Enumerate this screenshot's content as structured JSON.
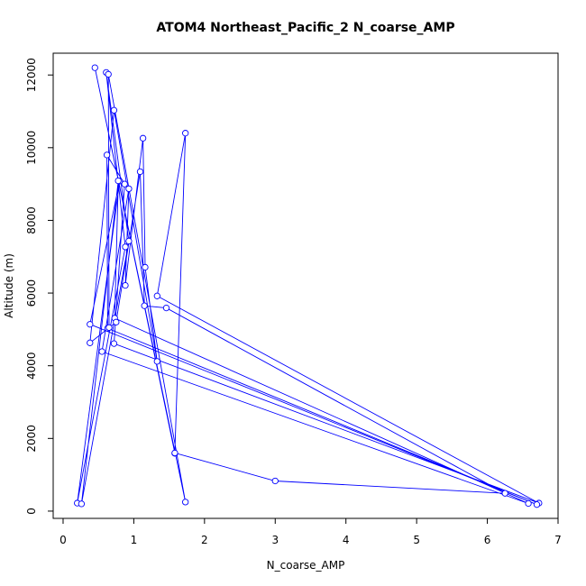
{
  "chart_data": {
    "type": "line",
    "title": "ATOM4 Northeast_Pacific_2 N_coarse_AMP",
    "xlabel": "N_coarse_AMP",
    "ylabel": "Altitude (m)",
    "xlim": [
      -0.14,
      7.0
    ],
    "ylim": [
      -200,
      12600
    ],
    "x_ticks": [
      0,
      1,
      2,
      3,
      4,
      5,
      6,
      7
    ],
    "y_ticks": [
      0,
      2000,
      4000,
      6000,
      8000,
      10000,
      12000
    ],
    "grid": false,
    "series": [
      {
        "color": "#0000ff",
        "marker": "open-circle",
        "points": [
          {
            "x": 1.58,
            "y": 1590
          },
          {
            "x": 1.73,
            "y": 10400
          },
          {
            "x": 1.33,
            "y": 5920
          },
          {
            "x": 6.73,
            "y": 220
          },
          {
            "x": 0.72,
            "y": 4610
          },
          {
            "x": 0.87,
            "y": 9000
          },
          {
            "x": 0.62,
            "y": 9800
          },
          {
            "x": 0.63,
            "y": 5030
          },
          {
            "x": 6.7,
            "y": 180
          },
          {
            "x": 0.38,
            "y": 5140
          },
          {
            "x": 0.8,
            "y": 9080
          },
          {
            "x": 0.2,
            "y": 220
          },
          {
            "x": 0.88,
            "y": 7270
          },
          {
            "x": 0.61,
            "y": 12070
          },
          {
            "x": 0.93,
            "y": 7430
          },
          {
            "x": 0.26,
            "y": 200
          },
          {
            "x": 0.78,
            "y": 9090
          },
          {
            "x": 0.73,
            "y": 5310
          },
          {
            "x": 6.58,
            "y": 210
          },
          {
            "x": 0.55,
            "y": 4390
          },
          {
            "x": 0.93,
            "y": 8870
          },
          {
            "x": 0.88,
            "y": 6210
          },
          {
            "x": 1.13,
            "y": 10260
          },
          {
            "x": 1.16,
            "y": 6710
          },
          {
            "x": 1.33,
            "y": 4120
          },
          {
            "x": 0.72,
            "y": 11030
          },
          {
            "x": 0.38,
            "y": 4630
          },
          {
            "x": 0.75,
            "y": 5200
          },
          {
            "x": 1.09,
            "y": 9340
          },
          {
            "x": 1.15,
            "y": 5650
          },
          {
            "x": 1.46,
            "y": 5590
          },
          {
            "x": 6.25,
            "y": 490
          },
          {
            "x": 3.0,
            "y": 830
          },
          {
            "x": 1.58,
            "y": 1600
          },
          {
            "x": 0.45,
            "y": 12200
          },
          {
            "x": 1.73,
            "y": 250
          },
          {
            "x": 0.64,
            "y": 12020
          },
          {
            "x": 0.65,
            "y": 5050
          }
        ]
      }
    ]
  }
}
